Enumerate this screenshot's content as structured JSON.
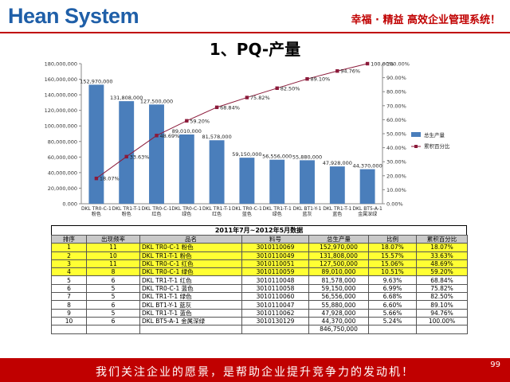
{
  "header": {
    "logo": "Hean System",
    "slogan": "幸福 · 精益  高效企业管理系统！"
  },
  "page_title": "1、PQ-产量",
  "chart_data": {
    "type": "bar",
    "categories": [
      "DKL TR0-C-1 粉色",
      "DKL TR1-T-1 粉色",
      "DKL TR0-C-1 红色",
      "DKL TR0-C-1 绿色",
      "DKL TR1-T-1 红色",
      "DKL TR0-C-1 蓝色",
      "DKL TR1-T-1 绿色",
      "DKL BT1-Y-1 蓝灰",
      "DKL TR1-T-1 蓝色",
      "DKL BT5-A-1 金属深绿"
    ],
    "series": [
      {
        "name": "总生产量",
        "type": "bar",
        "axis": "left",
        "color": "#4A7EBB",
        "values": [
          152970000,
          131808000,
          127500000,
          89010000,
          81578000,
          59150000,
          56556000,
          55880000,
          47928000,
          44370000
        ],
        "labels": [
          "152,970,000",
          "131,808,000",
          "127,500,000",
          "89,010,000",
          "81,578,000",
          "59,150,000",
          "56,556,000",
          "55,880,000",
          "47,928,000",
          "44,370,000"
        ]
      },
      {
        "name": "累积百分比",
        "type": "line",
        "axis": "right",
        "color": "#8B1A3A",
        "values": [
          18.07,
          33.63,
          48.69,
          59.2,
          68.84,
          75.82,
          82.5,
          89.1,
          94.76,
          100
        ],
        "labels": [
          "18.07%",
          "33.63%",
          "48.69%",
          "59.20%",
          "68.84%",
          "75.82%",
          "82.50%",
          "89.10%",
          "94.76%",
          "100.00%"
        ]
      }
    ],
    "ylim": [
      0,
      180000000
    ],
    "y_ticks": [
      "0.000",
      "20,000,000",
      "40,000,000",
      "60,000,000",
      "80,000,000",
      "100,000,000",
      "120,000,000",
      "140,000,000",
      "160,000,000",
      "180,000,000"
    ],
    "y2lim": [
      0,
      100
    ],
    "y2_ticks": [
      "0.00%",
      "10.00%",
      "20.00%",
      "30.00%",
      "40.00%",
      "50.00%",
      "60.00%",
      "70.00%",
      "80.00%",
      "90.00%",
      "100.00%"
    ],
    "legend_position": "right",
    "grid": false
  },
  "table": {
    "title": "2011年7月~2012年5月数据",
    "headers": [
      "排序",
      "出现频率",
      "品名",
      "料号",
      "总生产量",
      "比例",
      "累积百分比"
    ],
    "rows": [
      [
        "1",
        "11",
        "DKL TR0-C-1 粉色",
        "3010110069",
        "152,970,000",
        "18.07%",
        "18.07%"
      ],
      [
        "2",
        "10",
        "DKL TR1-T-1 粉色",
        "3010110049",
        "131,808,000",
        "15.57%",
        "33.63%"
      ],
      [
        "3",
        "11",
        "DKL TR0-C-1 红色",
        "3010110051",
        "127,500,000",
        "15.06%",
        "48.69%"
      ],
      [
        "4",
        "8",
        "DKL TR0-C-1 绿色",
        "3010110059",
        "89,010,000",
        "10.51%",
        "59.20%"
      ],
      [
        "5",
        "6",
        "DKL TR1-T-1 红色",
        "3010110048",
        "81,578,000",
        "9.63%",
        "68.84%"
      ],
      [
        "6",
        "5",
        "DKL TR0-C-1 蓝色",
        "3010110058",
        "59,150,000",
        "6.99%",
        "75.82%"
      ],
      [
        "7",
        "5",
        "DKL TR1-T-1 绿色",
        "3010110060",
        "56,556,000",
        "6.68%",
        "82.50%"
      ],
      [
        "8",
        "6",
        "DKL BT1-Y-1 蓝灰",
        "3010110047",
        "55,880,000",
        "6.60%",
        "89.10%"
      ],
      [
        "9",
        "5",
        "DKL TR1-T-1 蓝色",
        "3010110062",
        "47,928,000",
        "5.66%",
        "94.76%"
      ],
      [
        "10",
        "6",
        "DKL BT5-A-1 金属深绿",
        "3010130129",
        "44,370,000",
        "5.24%",
        "100.00%"
      ]
    ],
    "total": "846,750,000",
    "highlighted_rows": 4,
    "highlight_color": "#FFFF33"
  },
  "footer": {
    "slogan": "我们关注企业的愿景，是帮助企业提升竞争力的发动机！",
    "page_number": "99"
  }
}
